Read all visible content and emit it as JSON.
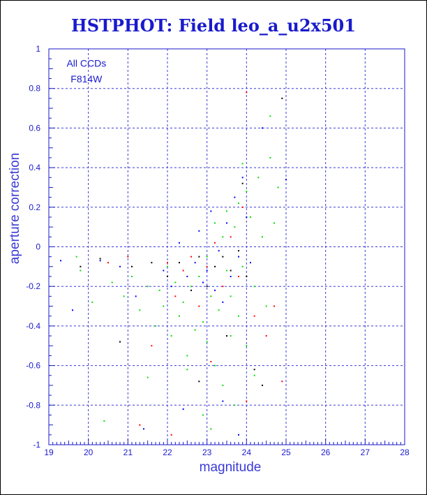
{
  "chart_data": {
    "type": "scatter",
    "title": "HSTPHOT: Field leo_a_u2x501",
    "xlabel": "magnitude",
    "ylabel": "aperture correction",
    "xlim": [
      19,
      28
    ],
    "ylim": [
      -1,
      1
    ],
    "x_ticks": [
      "19",
      "20",
      "21",
      "22",
      "23",
      "24",
      "25",
      "26",
      "27",
      "28"
    ],
    "y_ticks": [
      "1",
      "0.8",
      "0.6",
      "0.4",
      "0.2",
      "0",
      "-0.2",
      "-0.4",
      "-0.6",
      "-0.8",
      "-1"
    ],
    "grid": "dashed",
    "annotations": [
      "All CCDs",
      "F814W"
    ],
    "colors": {
      "axis": "#1a1acc",
      "grid": "#3a3ad8",
      "series_green": "#00e000",
      "series_blue": "#0000ff",
      "series_red": "#ff0000",
      "series_black": "#000000"
    },
    "series": [
      {
        "color": "#00e000",
        "points": [
          [
            19.7,
            -0.05
          ],
          [
            19.8,
            -0.12
          ],
          [
            20.1,
            -0.28
          ],
          [
            20.4,
            -0.88
          ],
          [
            20.6,
            -0.18
          ],
          [
            20.9,
            -0.25
          ],
          [
            21.1,
            -0.15
          ],
          [
            21.3,
            -0.32
          ],
          [
            21.5,
            -0.2
          ],
          [
            21.7,
            -0.4
          ],
          [
            21.8,
            -0.22
          ],
          [
            21.9,
            -0.3
          ],
          [
            22.0,
            -0.1
          ],
          [
            22.1,
            -0.45
          ],
          [
            22.2,
            -0.18
          ],
          [
            22.3,
            -0.35
          ],
          [
            22.4,
            -0.28
          ],
          [
            22.5,
            -0.55
          ],
          [
            22.6,
            -0.2
          ],
          [
            22.7,
            -0.42
          ],
          [
            22.8,
            -0.15
          ],
          [
            22.9,
            -0.38
          ],
          [
            23.0,
            -0.05
          ],
          [
            23.0,
            -0.48
          ],
          [
            23.1,
            -0.25
          ],
          [
            23.2,
            -0.6
          ],
          [
            23.2,
            0.12
          ],
          [
            23.3,
            -0.32
          ],
          [
            23.4,
            0.05
          ],
          [
            23.4,
            -0.7
          ],
          [
            23.5,
            -0.12
          ],
          [
            23.5,
            0.18
          ],
          [
            23.6,
            -0.45
          ],
          [
            23.6,
            -0.25
          ],
          [
            23.7,
            0.1
          ],
          [
            23.7,
            -0.8
          ],
          [
            23.8,
            -0.35
          ],
          [
            23.8,
            0.22
          ],
          [
            23.9,
            -0.1
          ],
          [
            24.0,
            -0.5
          ],
          [
            24.0,
            0.28
          ],
          [
            24.1,
            0.15
          ],
          [
            24.2,
            -0.2
          ],
          [
            24.3,
            0.35
          ],
          [
            24.4,
            0.05
          ],
          [
            24.5,
            -0.3
          ],
          [
            24.6,
            0.45
          ],
          [
            24.7,
            0.12
          ],
          [
            24.8,
            0.3
          ],
          [
            24.6,
            0.66
          ],
          [
            23.9,
            0.42
          ],
          [
            22.5,
            -0.62
          ],
          [
            21.5,
            -0.66
          ],
          [
            23.1,
            -0.92
          ],
          [
            22.9,
            -0.85
          ],
          [
            24.2,
            -0.65
          ]
        ]
      },
      {
        "color": "#0000ff",
        "points": [
          [
            19.3,
            -0.07
          ],
          [
            19.6,
            -0.32
          ],
          [
            20.3,
            -0.07
          ],
          [
            20.8,
            -0.1
          ],
          [
            21.2,
            -0.25
          ],
          [
            21.4,
            -0.92
          ],
          [
            21.9,
            -0.12
          ],
          [
            22.1,
            -0.2
          ],
          [
            22.3,
            0.02
          ],
          [
            22.5,
            -0.15
          ],
          [
            22.7,
            -0.08
          ],
          [
            22.8,
            0.08
          ],
          [
            22.9,
            -0.18
          ],
          [
            23.0,
            -0.12
          ],
          [
            23.1,
            0.18
          ],
          [
            23.2,
            -0.22
          ],
          [
            23.3,
            -0.02
          ],
          [
            23.4,
            -0.28
          ],
          [
            23.5,
            0.12
          ],
          [
            23.6,
            -0.15
          ],
          [
            23.7,
            0.25
          ],
          [
            23.8,
            -0.05
          ],
          [
            23.9,
            0.35
          ],
          [
            24.0,
            0.15
          ],
          [
            24.1,
            -0.08
          ],
          [
            24.4,
            0.6
          ],
          [
            25.0,
            0.34
          ],
          [
            23.4,
            -0.78
          ],
          [
            22.4,
            -0.82
          ],
          [
            23.8,
            -0.95
          ]
        ]
      },
      {
        "color": "#ff0000",
        "points": [
          [
            20.5,
            -0.08
          ],
          [
            21.0,
            -0.05
          ],
          [
            21.3,
            -0.9
          ],
          [
            21.6,
            -0.5
          ],
          [
            22.0,
            -0.08
          ],
          [
            22.2,
            -0.25
          ],
          [
            22.4,
            -0.12
          ],
          [
            22.6,
            -0.05
          ],
          [
            22.8,
            -0.3
          ],
          [
            23.0,
            -0.1
          ],
          [
            23.2,
            0.02
          ],
          [
            23.4,
            -0.2
          ],
          [
            23.6,
            0.05
          ],
          [
            23.8,
            -0.15
          ],
          [
            23.9,
            0.2
          ],
          [
            24.0,
            0.78
          ],
          [
            24.2,
            -0.35
          ],
          [
            24.5,
            -0.45
          ],
          [
            24.7,
            -0.3
          ],
          [
            24.9,
            -0.68
          ],
          [
            22.1,
            -0.95
          ],
          [
            23.1,
            -0.58
          ],
          [
            24.0,
            -0.78
          ]
        ]
      },
      {
        "color": "#000000",
        "points": [
          [
            19.8,
            -0.1
          ],
          [
            20.3,
            -0.06
          ],
          [
            20.8,
            -0.48
          ],
          [
            21.1,
            -0.1
          ],
          [
            21.6,
            -0.08
          ],
          [
            22.0,
            -0.15
          ],
          [
            22.3,
            -0.08
          ],
          [
            22.6,
            -0.22
          ],
          [
            22.8,
            -0.05
          ],
          [
            23.0,
            -0.2
          ],
          [
            23.2,
            -0.1
          ],
          [
            23.4,
            -0.05
          ],
          [
            23.6,
            -0.12
          ],
          [
            23.8,
            -0.02
          ],
          [
            23.9,
            0.32
          ],
          [
            24.2,
            -0.62
          ],
          [
            24.4,
            -0.7
          ],
          [
            24.9,
            0.75
          ],
          [
            24.0,
            -0.15
          ],
          [
            22.8,
            -0.68
          ],
          [
            23.5,
            -0.45
          ]
        ]
      }
    ]
  }
}
